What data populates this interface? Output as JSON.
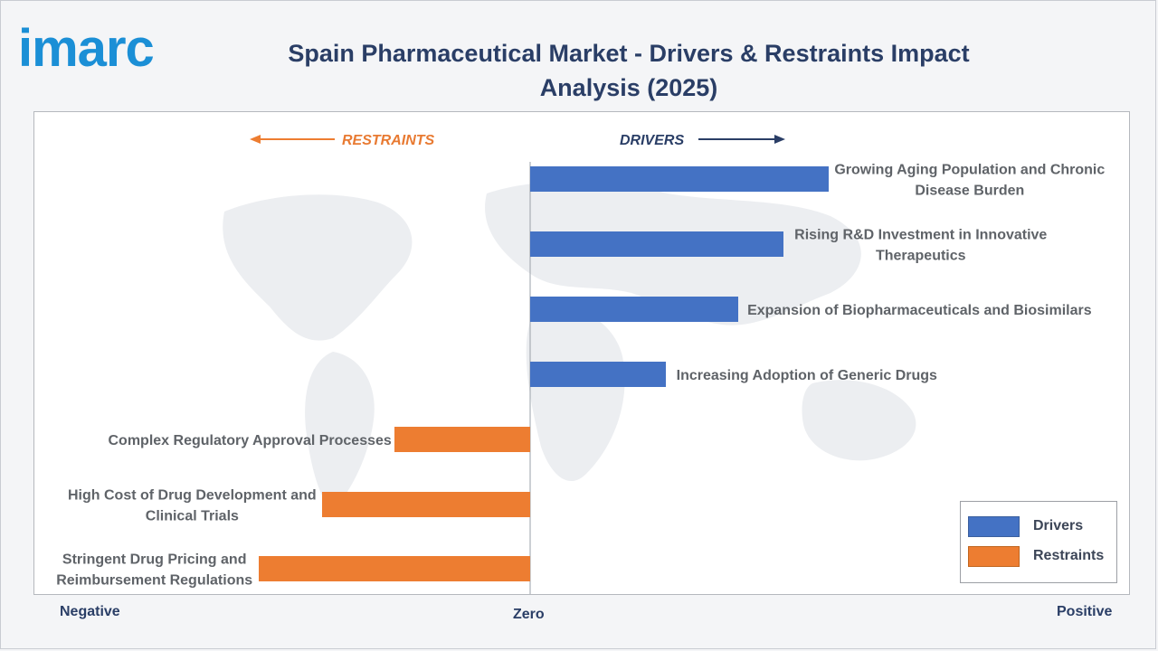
{
  "brand": {
    "logo_text": "imarc",
    "logo_color": "#1b8fd6"
  },
  "title": "Spain Pharmaceutical Market - Drivers & Restraints Impact Analysis (2025)",
  "direction_labels": {
    "restraints": "RESTRAINTS",
    "drivers": "DRIVERS"
  },
  "axis_labels": {
    "negative": "Negative",
    "zero": "Zero",
    "positive": "Positive"
  },
  "legend": [
    {
      "label": "Drivers",
      "color": "#4472c4"
    },
    {
      "label": "Restraints",
      "color": "#ed7d31"
    }
  ],
  "colors": {
    "drivers": "#4472c4",
    "restraints": "#ed7d31",
    "restraints_text": "#e87a32",
    "drivers_text": "#2a3e66",
    "label_text": "#5f6368"
  },
  "chart_data": {
    "type": "bar",
    "orientation": "horizontal",
    "xlim": [
      -6,
      6.5
    ],
    "grid": false,
    "legend_position": "bottom-right",
    "categories": [
      "Growing Aging Population and Chronic Disease Burden",
      "Rising R&D Investment in Innovative Therapeutics",
      "Expansion of Biopharmaceuticals and Biosimilars",
      "Increasing Adoption of Generic Drugs",
      "Complex Regulatory Approval Processes",
      "High Cost of Drug Development and Clinical Trials",
      "Stringent Drug Pricing and Reimbursement Regulations"
    ],
    "label_lines": [
      [
        "Growing Aging Population and Chronic",
        "Disease Burden"
      ],
      [
        "Rising R&D Investment in Innovative",
        "Therapeutics"
      ],
      [
        "Expansion of Biopharmaceuticals and Biosimilars"
      ],
      [
        "Increasing Adoption of Generic Drugs"
      ],
      [
        "Complex Regulatory Approval Processes"
      ],
      [
        "High Cost of Drug Development and",
        "Clinical Trials"
      ],
      [
        "Stringent Drug Pricing and",
        "Reimbursement Regulations"
      ]
    ],
    "series": [
      {
        "name": "Drivers",
        "values": [
          3.3,
          2.8,
          2.3,
          1.5,
          null,
          null,
          null
        ]
      },
      {
        "name": "Restraints",
        "values": [
          null,
          null,
          null,
          null,
          -1.5,
          -2.3,
          -3.0
        ]
      }
    ]
  }
}
